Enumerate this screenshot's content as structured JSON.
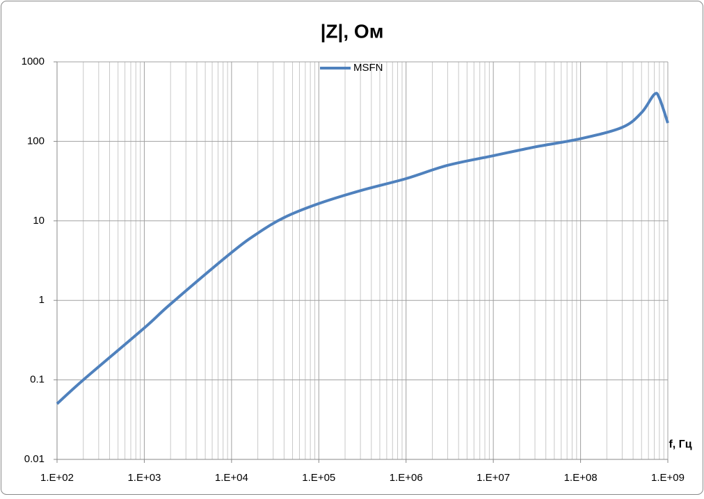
{
  "chart_data": {
    "type": "line",
    "title": "|Z|, Ом",
    "x_label": "f, Гц",
    "x": [
      100,
      200,
      1000,
      2000,
      10000,
      20000,
      40000,
      100000,
      300000,
      1000000,
      3000000,
      10000000,
      30000000,
      100000000,
      300000000,
      500000000,
      700000000,
      800000000,
      1000000000
    ],
    "series": [
      {
        "name": "MSFN",
        "color": "#4f81bd",
        "values": [
          0.05,
          0.1,
          0.45,
          0.9,
          4,
          7,
          11,
          16.5,
          24,
          34,
          50,
          66,
          85,
          108,
          150,
          230,
          390,
          350,
          170
        ]
      }
    ],
    "xlim": [
      100,
      1000000000
    ],
    "ylim": [
      0.01,
      1000
    ],
    "xticks": [
      {
        "value": 100,
        "label": "1.E+02"
      },
      {
        "value": 1000,
        "label": "1.E+03"
      },
      {
        "value": 10000,
        "label": "1.E+04"
      },
      {
        "value": 100000,
        "label": "1.E+05"
      },
      {
        "value": 1000000,
        "label": "1.E+06"
      },
      {
        "value": 10000000,
        "label": "1.E+07"
      },
      {
        "value": 100000000,
        "label": "1.E+08"
      },
      {
        "value": 1000000000,
        "label": "1.E+09"
      }
    ],
    "yticks": [
      1000,
      100,
      10,
      1,
      0.1,
      0.01
    ],
    "xlog": true,
    "ylog": true,
    "grid": true,
    "minor_grid_x": true,
    "legend": "top"
  }
}
